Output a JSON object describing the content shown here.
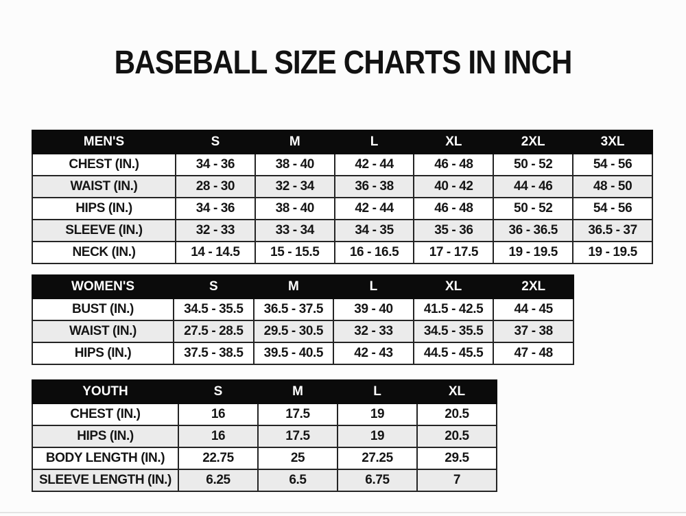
{
  "page": {
    "title": "BASEBALL SIZE CHARTS IN INCH"
  },
  "colors": {
    "background": "#fcfcfc",
    "table_header_bg": "#0b0b0b",
    "table_header_text": "#ffffff",
    "row_stripe": "#ebebeb",
    "row_plain": "#ffffff",
    "border": "#242424",
    "text": "#151515"
  },
  "tables": [
    {
      "name": "mens",
      "header": [
        "MEN'S",
        "S",
        "M",
        "L",
        "XL",
        "2XL",
        "3XL"
      ],
      "rows": [
        [
          "CHEST (IN.)",
          "34 - 36",
          "38 - 40",
          "42 - 44",
          "46 - 48",
          "50 - 52",
          "54 - 56"
        ],
        [
          "WAIST (IN.)",
          "28 - 30",
          "32 - 34",
          "36 - 38",
          "40 - 42",
          "44 - 46",
          "48 - 50"
        ],
        [
          "HIPS (IN.)",
          "34 - 36",
          "38 - 40",
          "42 - 44",
          "46 - 48",
          "50 - 52",
          "54 - 56"
        ],
        [
          "SLEEVE (IN.)",
          "32 - 33",
          "33 - 34",
          "34 - 35",
          "35 - 36",
          "36 - 36.5",
          "36.5 - 37"
        ],
        [
          "NECK (IN.)",
          "14 - 14.5",
          "15 - 15.5",
          "16 - 16.5",
          "17 - 17.5",
          "19 - 19.5",
          "19 - 19.5"
        ]
      ]
    },
    {
      "name": "womens",
      "header": [
        "WOMEN'S",
        "S",
        "M",
        "L",
        "XL",
        "2XL"
      ],
      "rows": [
        [
          "BUST (IN.)",
          "34.5 - 35.5",
          "36.5 - 37.5",
          "39 - 40",
          "41.5 - 42.5",
          "44 - 45"
        ],
        [
          "WAIST (IN.)",
          "27.5 - 28.5",
          "29.5 - 30.5",
          "32 - 33",
          "34.5 - 35.5",
          "37 - 38"
        ],
        [
          "HIPS (IN.)",
          "37.5 - 38.5",
          "39.5 - 40.5",
          "42 - 43",
          "44.5 - 45.5",
          "47 - 48"
        ]
      ]
    },
    {
      "name": "youth",
      "header": [
        "YOUTH",
        "S",
        "M",
        "L",
        "XL"
      ],
      "rows": [
        [
          "CHEST (IN.)",
          "16",
          "17.5",
          "19",
          "20.5"
        ],
        [
          "HIPS (IN.)",
          "16",
          "17.5",
          "19",
          "20.5"
        ],
        [
          "BODY LENGTH (IN.)",
          "22.75",
          "25",
          "27.25",
          "29.5"
        ],
        [
          "SLEEVE LENGTH (IN.)",
          "6.25",
          "6.5",
          "6.75",
          "7"
        ]
      ]
    }
  ]
}
